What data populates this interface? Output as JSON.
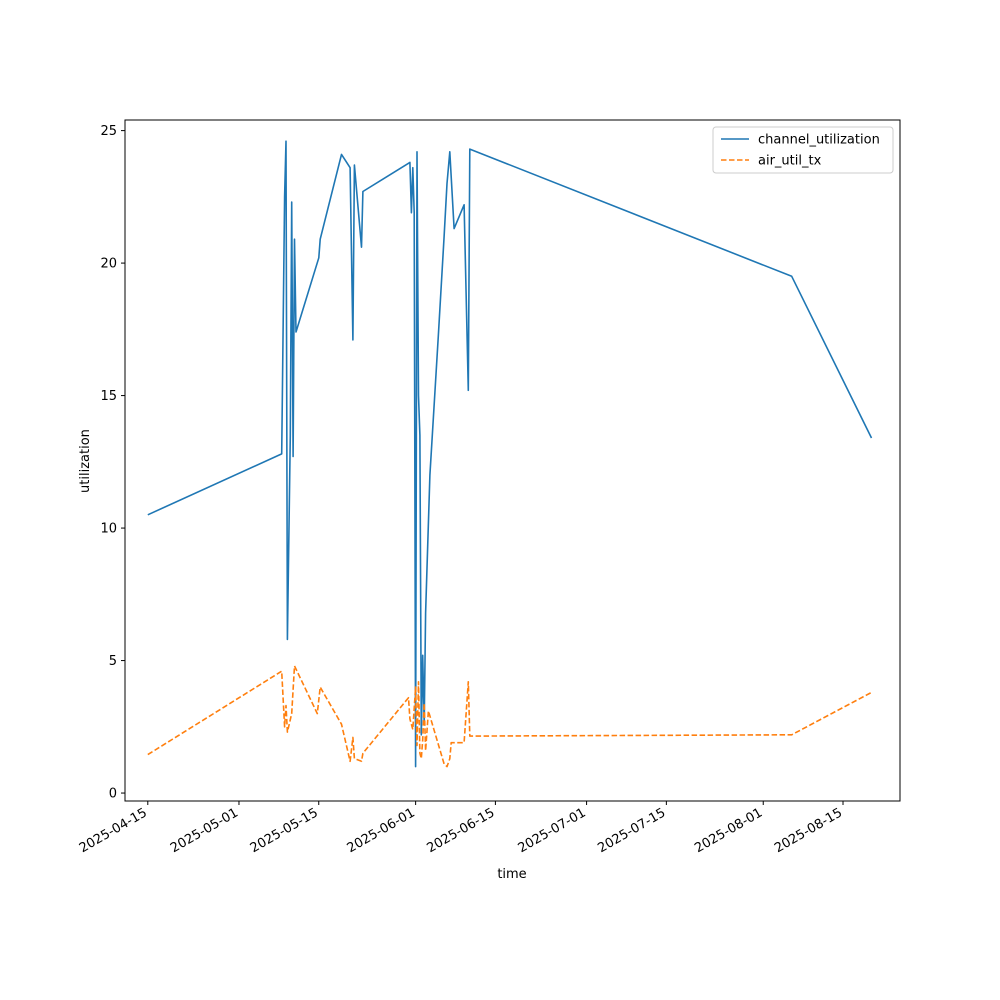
{
  "chart_data": {
    "type": "line",
    "title": "",
    "xlabel": "time",
    "ylabel": "utilization",
    "x_axis": "date",
    "xlim": [
      "2025-04-11",
      "2025-08-25"
    ],
    "ylim": [
      -0.3,
      25.4
    ],
    "x_ticks": [
      "2025-04-15",
      "2025-05-01",
      "2025-05-15",
      "2025-06-01",
      "2025-06-15",
      "2025-07-01",
      "2025-07-15",
      "2025-08-01",
      "2025-08-15"
    ],
    "y_ticks": [
      0,
      5,
      10,
      15,
      20,
      25
    ],
    "grid": false,
    "legend": "top-right",
    "series": [
      {
        "name": "channel_utilization",
        "color": "#1f77b4",
        "dash": "solid",
        "points": [
          [
            "2025-04-15T00:00",
            10.5
          ],
          [
            "2025-05-08T12:00",
            12.8
          ],
          [
            "2025-05-09T00:00",
            22.5
          ],
          [
            "2025-05-09T06:00",
            24.6
          ],
          [
            "2025-05-09T12:00",
            5.8
          ],
          [
            "2025-05-10T00:00",
            13.5
          ],
          [
            "2025-05-10T06:00",
            22.3
          ],
          [
            "2025-05-10T12:00",
            12.7
          ],
          [
            "2025-05-10T18:00",
            20.9
          ],
          [
            "2025-05-11T00:00",
            17.4
          ],
          [
            "2025-05-15T00:00",
            20.2
          ],
          [
            "2025-05-15T06:00",
            20.9
          ],
          [
            "2025-05-19T00:00",
            24.1
          ],
          [
            "2025-05-20T12:00",
            23.6
          ],
          [
            "2025-05-21T00:00",
            17.1
          ],
          [
            "2025-05-21T06:00",
            23.7
          ],
          [
            "2025-05-22T12:00",
            20.6
          ],
          [
            "2025-05-22T18:00",
            22.7
          ],
          [
            "2025-05-31T00:00",
            23.8
          ],
          [
            "2025-05-31T06:00",
            21.9
          ],
          [
            "2025-05-31T12:00",
            23.6
          ],
          [
            "2025-05-31T18:00",
            21.9
          ],
          [
            "2025-06-01T00:00",
            1.0
          ],
          [
            "2025-06-01T06:00",
            24.2
          ],
          [
            "2025-06-01T12:00",
            15.0
          ],
          [
            "2025-06-01T18:00",
            13.5
          ],
          [
            "2025-06-02T00:00",
            2.2
          ],
          [
            "2025-06-02T06:00",
            5.2
          ],
          [
            "2025-06-02T12:00",
            2.6
          ],
          [
            "2025-06-02T18:00",
            6.8
          ],
          [
            "2025-06-03T12:00",
            12.0
          ],
          [
            "2025-06-05T00:00",
            17.3
          ],
          [
            "2025-06-06T00:00",
            21.0
          ],
          [
            "2025-06-06T12:00",
            23.0
          ],
          [
            "2025-06-07T00:00",
            24.2
          ],
          [
            "2025-06-07T18:00",
            21.3
          ],
          [
            "2025-06-09T12:00",
            22.2
          ],
          [
            "2025-06-10T06:00",
            15.2
          ],
          [
            "2025-06-10T12:00",
            24.3
          ],
          [
            "2025-08-06T00:00",
            19.5
          ],
          [
            "2025-08-20T00:00",
            13.4
          ]
        ]
      },
      {
        "name": "air_util_tx",
        "color": "#ff7f0e",
        "dash": "dashed",
        "points": [
          [
            "2025-04-15T00:00",
            1.45
          ],
          [
            "2025-05-08T12:00",
            4.6
          ],
          [
            "2025-05-09T00:00",
            2.5
          ],
          [
            "2025-05-09T06:00",
            3.3
          ],
          [
            "2025-05-09T12:00",
            2.3
          ],
          [
            "2025-05-10T06:00",
            3.0
          ],
          [
            "2025-05-10T18:00",
            4.8
          ],
          [
            "2025-05-14T18:00",
            3.0
          ],
          [
            "2025-05-15T06:00",
            4.0
          ],
          [
            "2025-05-19T00:00",
            2.6
          ],
          [
            "2025-05-20T12:00",
            1.2
          ],
          [
            "2025-05-21T00:00",
            2.1
          ],
          [
            "2025-05-21T06:00",
            1.3
          ],
          [
            "2025-05-22T12:00",
            1.2
          ],
          [
            "2025-05-22T18:00",
            1.5
          ],
          [
            "2025-05-30T18:00",
            3.6
          ],
          [
            "2025-05-31T00:00",
            2.8
          ],
          [
            "2025-05-31T12:00",
            2.4
          ],
          [
            "2025-06-01T00:00",
            4.0
          ],
          [
            "2025-06-01T06:00",
            1.8
          ],
          [
            "2025-06-01T12:00",
            4.2
          ],
          [
            "2025-06-01T18:00",
            1.5
          ],
          [
            "2025-06-02T00:00",
            1.3
          ],
          [
            "2025-06-02T06:00",
            2.0
          ],
          [
            "2025-06-02T12:00",
            3.4
          ],
          [
            "2025-06-02T18:00",
            1.6
          ],
          [
            "2025-06-03T06:00",
            3.1
          ],
          [
            "2025-06-06T00:00",
            1.1
          ],
          [
            "2025-06-06T12:00",
            1.0
          ],
          [
            "2025-06-07T00:00",
            1.3
          ],
          [
            "2025-06-07T06:00",
            1.9
          ],
          [
            "2025-06-09T12:00",
            1.9
          ],
          [
            "2025-06-10T06:00",
            4.2
          ],
          [
            "2025-06-10T12:00",
            2.15
          ],
          [
            "2025-08-06T00:00",
            2.2
          ],
          [
            "2025-08-20T00:00",
            3.8
          ]
        ]
      }
    ]
  }
}
